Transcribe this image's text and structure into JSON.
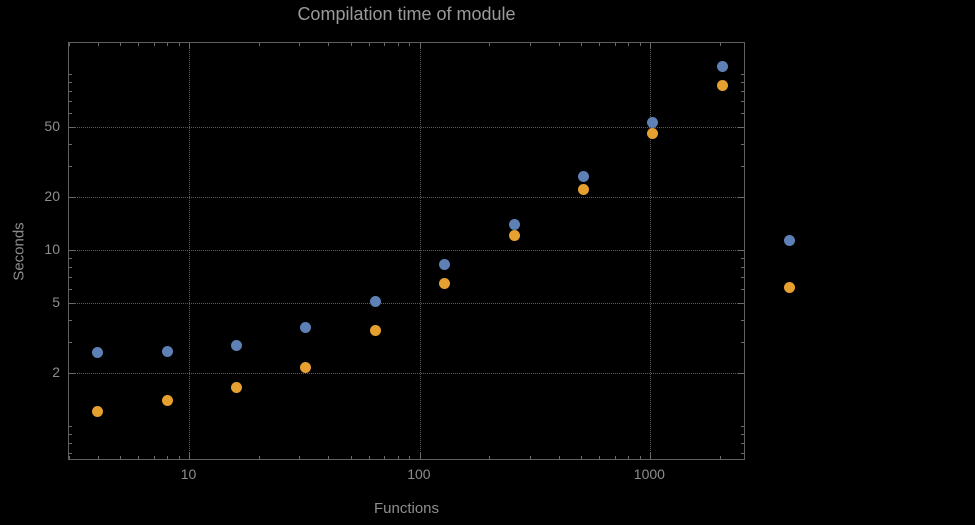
{
  "title": "Compilation time of module",
  "xlabel": "Functions",
  "ylabel": "Seconds",
  "colors": {
    "background": "#000000",
    "text": "#8d8d8d",
    "frame": "#606060",
    "grid": "#5c5c5c",
    "series1": "#5e81b5",
    "series2": "#e5a030"
  },
  "chart_data": {
    "type": "scatter",
    "scale": "log-log",
    "title": "Compilation time of module",
    "xlabel": "Functions",
    "ylabel": "Seconds",
    "x": [
      4,
      8,
      16,
      32,
      64,
      128,
      256,
      512,
      1024,
      2048
    ],
    "series": [
      {
        "name": "series-1",
        "color": "#5e81b5",
        "values": [
          2.6,
          2.65,
          2.85,
          3.6,
          5.1,
          8.2,
          14,
          26,
          53,
          110
        ]
      },
      {
        "name": "series-2",
        "color": "#e5a030",
        "values": [
          1.2,
          1.4,
          1.65,
          2.15,
          3.5,
          6.4,
          12,
          22,
          46,
          86
        ]
      }
    ],
    "x_ticks": [
      10,
      100,
      1000
    ],
    "x_tick_labels": [
      "10",
      "100",
      "1000"
    ],
    "y_ticks": [
      2,
      5,
      10,
      20,
      50
    ],
    "y_tick_labels": [
      "2",
      "5",
      "10",
      "20",
      "50"
    ],
    "xlim": [
      3,
      2600
    ],
    "ylim": [
      0.63,
      150
    ],
    "grid": "dotted",
    "legend_position": "right-outside",
    "legend": {
      "items": [
        {
          "series": "series-1",
          "color": "#5e81b5",
          "label": ""
        },
        {
          "series": "series-2",
          "color": "#e5a030",
          "label": ""
        }
      ]
    }
  }
}
